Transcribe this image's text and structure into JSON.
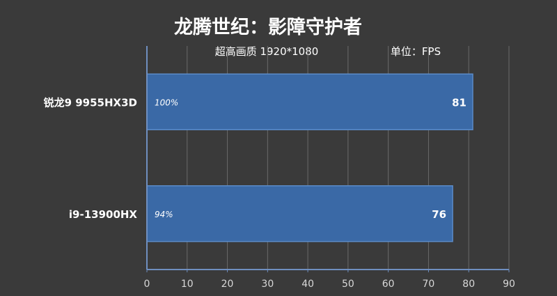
{
  "chart_data": {
    "type": "bar",
    "orientation": "horizontal",
    "title": "龙腾世纪：影障守护者",
    "subtitle": "超高画质 1920*1080",
    "unit_label": "单位：FPS",
    "categories": [
      "锐龙9 9955HX3D",
      "i9-13900HX"
    ],
    "values": [
      81,
      76
    ],
    "percent_labels": [
      "100%",
      "94%"
    ],
    "value_labels": [
      "81",
      "76"
    ],
    "xlim": [
      0,
      90
    ],
    "xticks": [
      0,
      10,
      20,
      30,
      40,
      50,
      60,
      70,
      80,
      90
    ],
    "xtick_labels": [
      "0",
      "10",
      "20",
      "30",
      "40",
      "50",
      "60",
      "70",
      "80",
      "90"
    ],
    "grid": true,
    "legend": "none",
    "colors": {
      "background": "#3a3a3a",
      "bar": "#3a69a6",
      "bar_edge": "#5b8bc8",
      "axis": "#6f8fc0",
      "grid": "#6a6a6a"
    }
  }
}
